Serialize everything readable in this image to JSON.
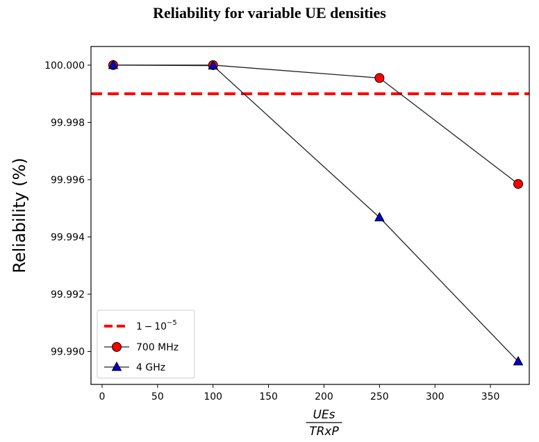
{
  "chart_data": {
    "type": "line",
    "title": "Reliability for variable UE densities",
    "xlabel_numerator": "UEs",
    "xlabel_denominator": "TRxP",
    "ylabel": "Reliability (%)",
    "xlim": [
      -10,
      385
    ],
    "ylim": [
      99.98885,
      100.00065
    ],
    "xticks": [
      0,
      50,
      100,
      150,
      200,
      250,
      300,
      350
    ],
    "yticks": [
      99.99,
      99.992,
      99.994,
      99.996,
      99.998,
      100.0
    ],
    "ytick_labels": [
      "99.990",
      "99.992",
      "99.994",
      "99.996",
      "99.998",
      "100.000"
    ],
    "grid": false,
    "legend_position": "lower-left",
    "threshold": {
      "name": "1 − 10−5",
      "name_base": "1 − 10",
      "name_exp": "−5",
      "value": 99.999,
      "color": "#ff0000",
      "style": "dashed"
    },
    "x": [
      10,
      100,
      250,
      375
    ],
    "series": [
      {
        "name": "700 MHz",
        "marker": "circle",
        "color": "#ff0000",
        "line_color": "#222222",
        "values": [
          100.0,
          100.0,
          99.99955,
          99.99585
        ]
      },
      {
        "name": "4 GHz",
        "marker": "triangle",
        "color": "#0000cc",
        "line_color": "#222222",
        "values": [
          100.0,
          99.99998,
          99.99468,
          99.98965
        ]
      }
    ]
  }
}
